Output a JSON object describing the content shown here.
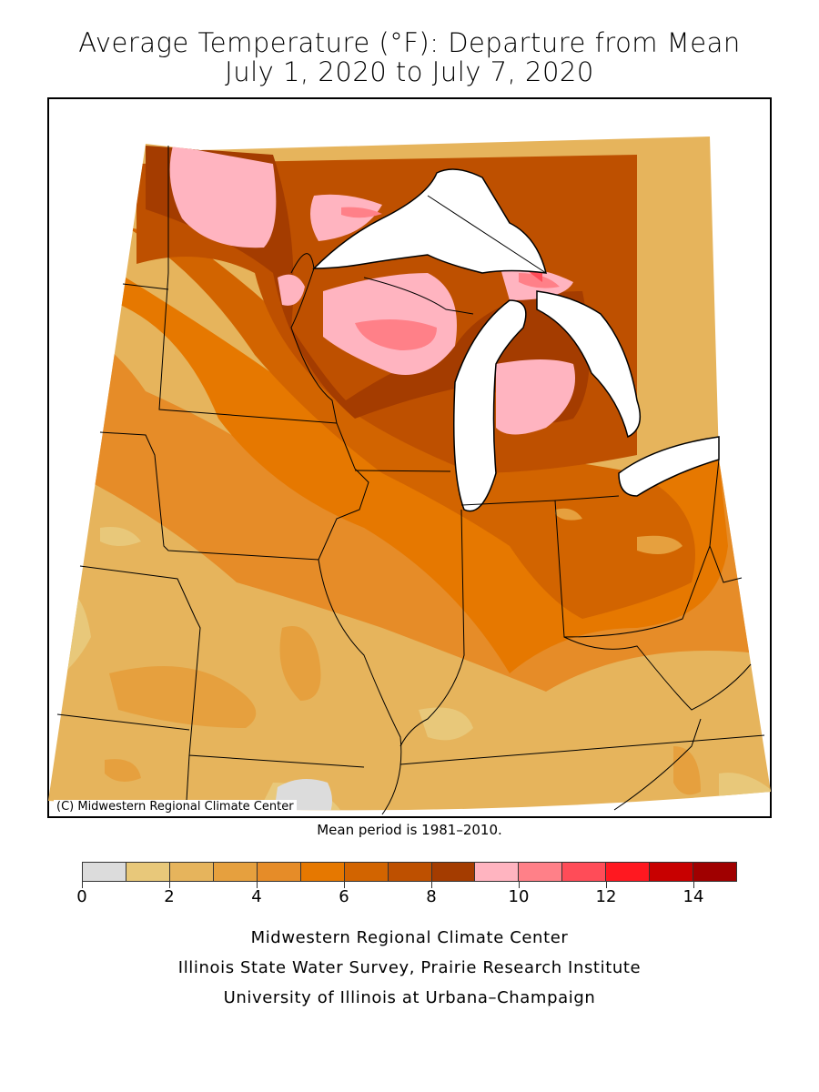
{
  "title": {
    "line1": "Average Temperature (°F): Departure from Mean",
    "line2": "July 1, 2020 to July 7, 2020"
  },
  "map": {
    "credit": "(C) Midwestern Regional Climate Center"
  },
  "mean_period": "Mean period is 1981–2010.",
  "legend": {
    "bins": [
      0,
      1,
      2,
      3,
      4,
      5,
      6,
      7,
      8,
      9,
      10,
      11,
      12,
      13,
      14,
      15
    ],
    "colors": [
      "#dcdcdc",
      "#e8c87a",
      "#e6b45c",
      "#e6a03e",
      "#e68c28",
      "#e67800",
      "#d26400",
      "#be5000",
      "#a43c00",
      "#ffb4c0",
      "#ff8088",
      "#ff4c58",
      "#ff1820",
      "#c80000",
      "#a00000"
    ],
    "tick_labels": [
      "0",
      "2",
      "4",
      "6",
      "8",
      "10",
      "12",
      "14"
    ]
  },
  "footer": {
    "line1": "Midwestern Regional Climate Center",
    "line2": "Illinois State Water Survey, Prairie Research Institute",
    "line3": "University of Illinois at Urbana–Champaign"
  }
}
